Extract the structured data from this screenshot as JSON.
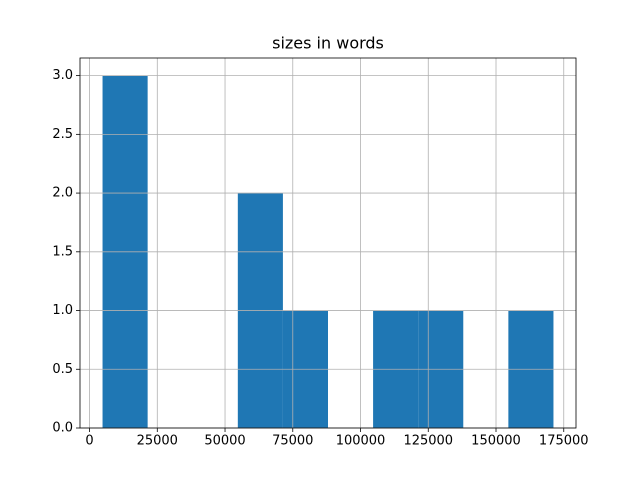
{
  "chart_data": {
    "type": "histogram",
    "title": "sizes in words",
    "bins": [
      4800,
      21440,
      38080,
      54720,
      71360,
      88000,
      104640,
      121280,
      137920,
      154560,
      171200
    ],
    "values": [
      3,
      0,
      0,
      2,
      1,
      0,
      1,
      1,
      0,
      1
    ],
    "color": "#1f77b4",
    "xlim": [
      -3520,
      179520
    ],
    "xticks": [
      0,
      25000,
      50000,
      75000,
      100000,
      125000,
      150000,
      175000
    ],
    "ylim": [
      0,
      3.15
    ],
    "yticks": [
      {
        "value": 0,
        "label": "0.0"
      },
      {
        "value": 0.5,
        "label": "0.5"
      },
      {
        "value": 1,
        "label": "1.0"
      },
      {
        "value": 1.5,
        "label": "1.5"
      },
      {
        "value": 2,
        "label": "2.0"
      },
      {
        "value": 2.5,
        "label": "2.5"
      },
      {
        "value": 3,
        "label": "3.0"
      }
    ],
    "grid": true
  }
}
